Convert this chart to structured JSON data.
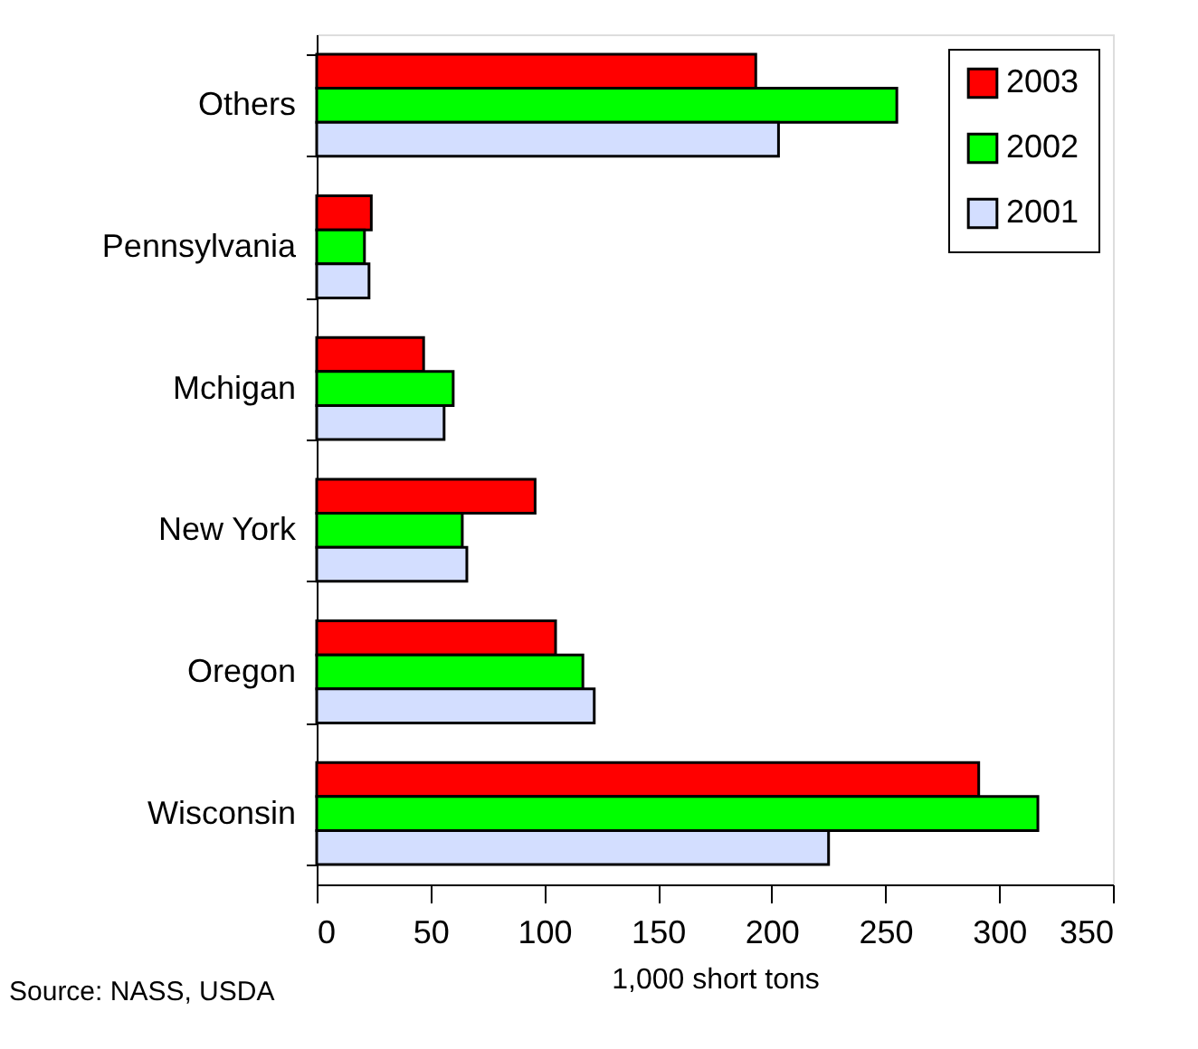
{
  "chart_data": {
    "type": "bar",
    "orientation": "horizontal",
    "categories": [
      "Others",
      "Pennsylvania",
      "Mchigan",
      "New York",
      "Oregon",
      "Wisconsin"
    ],
    "series": [
      {
        "name": "2003",
        "color": "#ff0000",
        "values": [
          193,
          24,
          47,
          96,
          105,
          291
        ]
      },
      {
        "name": "2002",
        "color": "#00ff00",
        "values": [
          255,
          21,
          60,
          64,
          117,
          317
        ]
      },
      {
        "name": "2001",
        "color": "#d3deff",
        "values": [
          203,
          23,
          56,
          66,
          122,
          225
        ]
      }
    ],
    "xlim": [
      0,
      350
    ],
    "xticks": [
      0,
      50,
      100,
      150,
      200,
      250,
      300,
      350
    ],
    "xlabel": "1,000 short tons",
    "legend": "top right",
    "grid": false,
    "annotations": [
      "Source:  NASS, USDA"
    ]
  }
}
